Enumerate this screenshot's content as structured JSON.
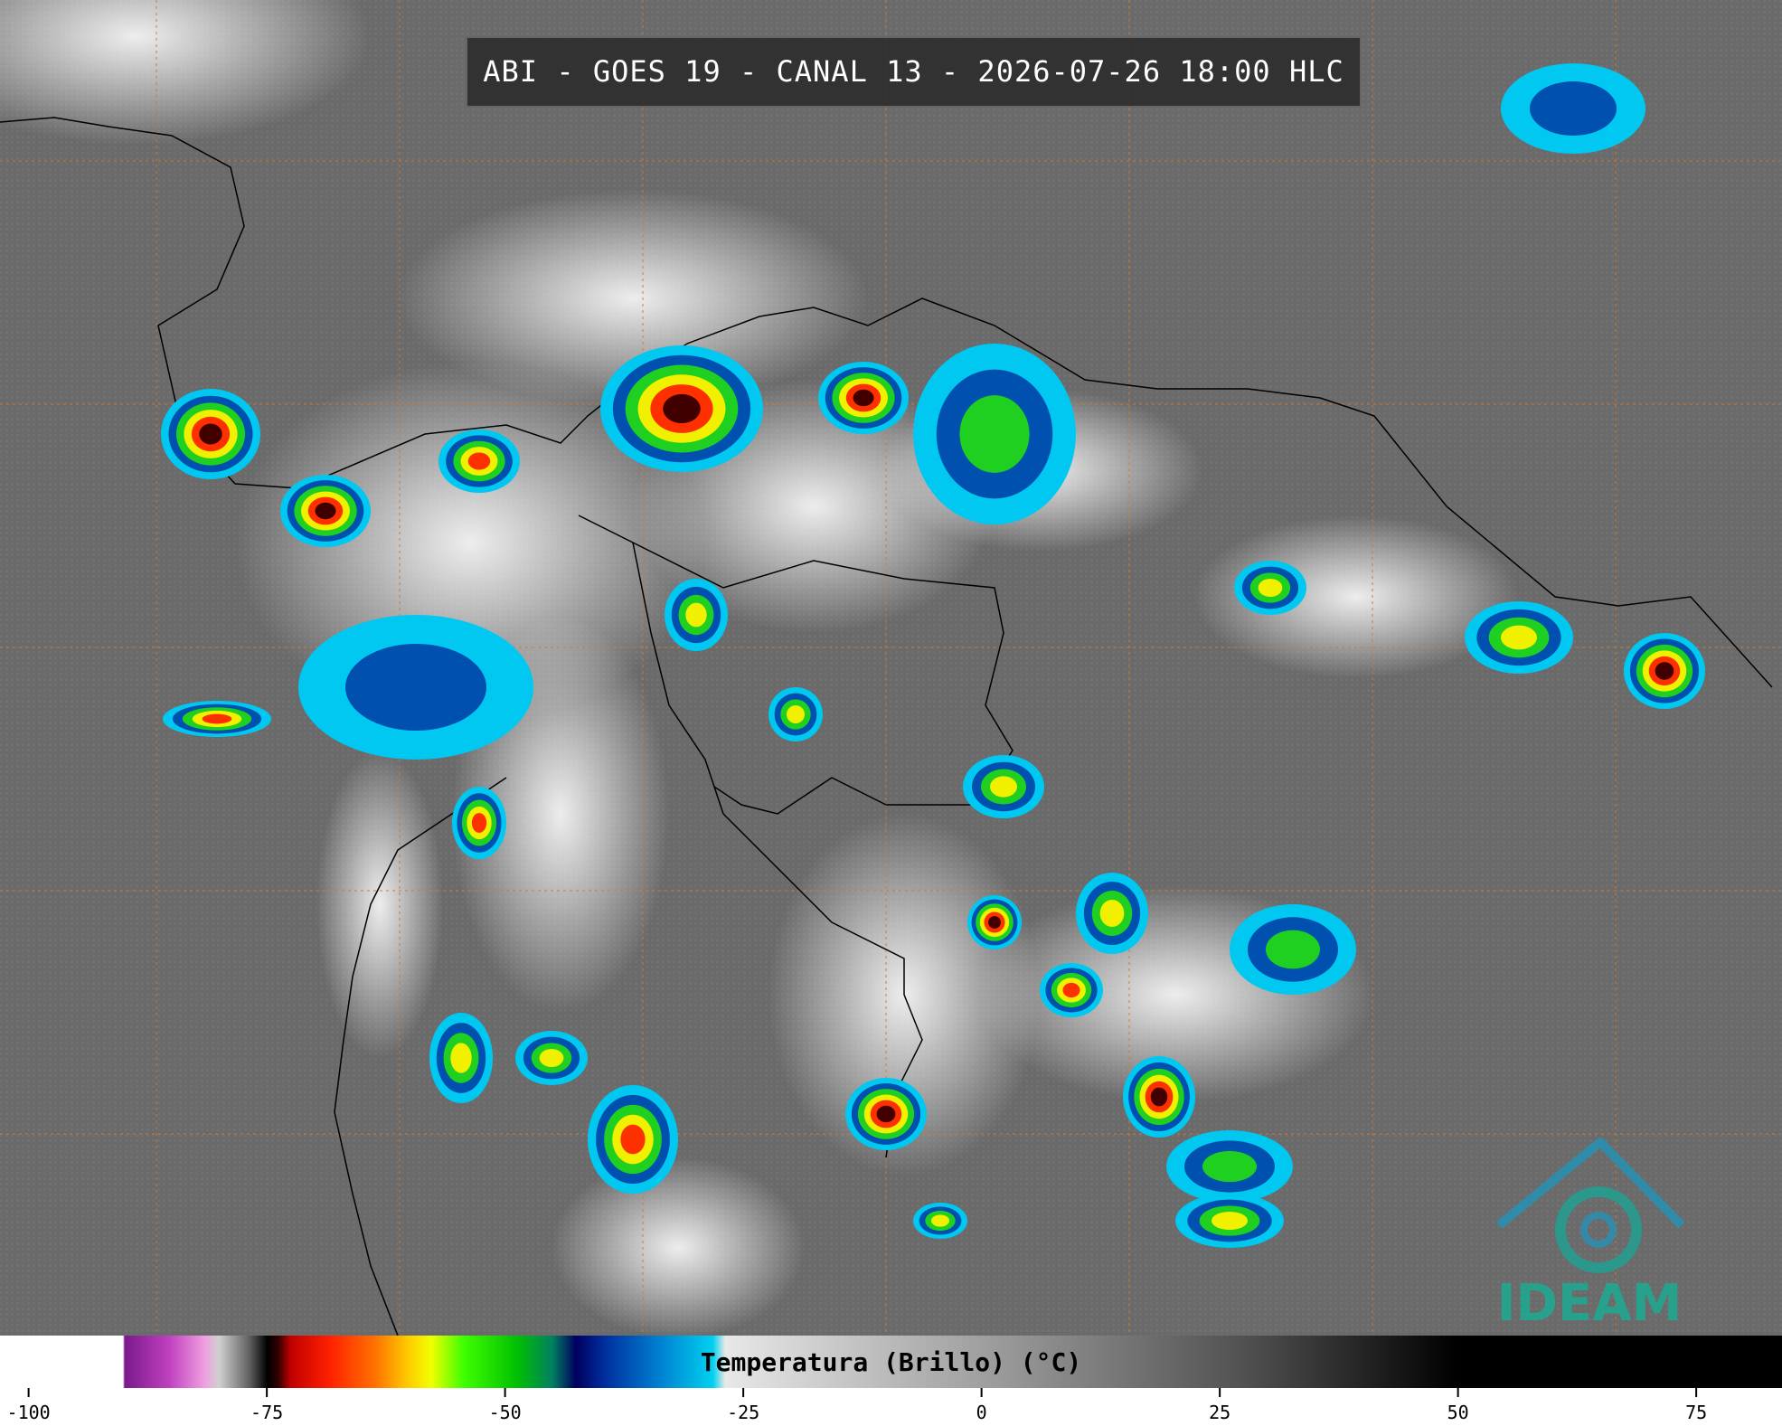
{
  "header": {
    "title": "ABI - GOES 19 - CANAL 13 - 2026-07-26 18:00 HLC"
  },
  "colorbar": {
    "label": "Temperatura (Brillo) (°C)",
    "range": [
      -103,
      84
    ],
    "ticks": [
      -100,
      -75,
      -50,
      -25,
      0,
      25,
      50,
      75
    ]
  },
  "logo": {
    "text": "IDEAM"
  }
}
